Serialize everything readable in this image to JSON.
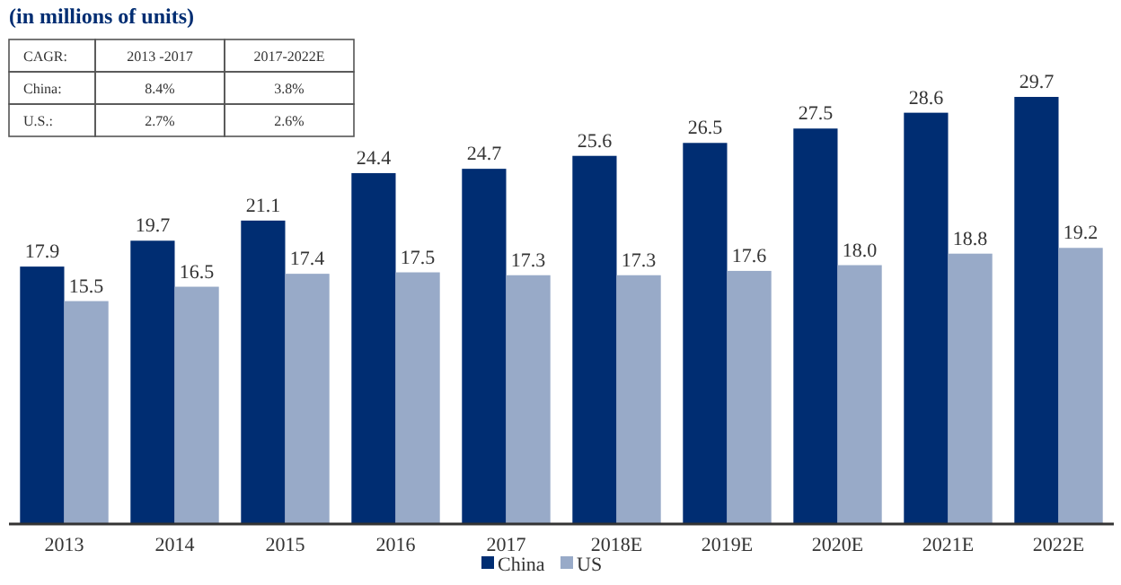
{
  "chart_data": {
    "type": "bar",
    "title": "(in millions of units)",
    "categories": [
      "2013",
      "2014",
      "2015",
      "2016",
      "2017",
      "2018E",
      "2019E",
      "2020E",
      "2021E",
      "2022E"
    ],
    "series": [
      {
        "name": "China",
        "color": "#002d72",
        "values": [
          17.9,
          19.7,
          21.1,
          24.4,
          24.7,
          25.6,
          26.5,
          27.5,
          28.6,
          29.7
        ]
      },
      {
        "name": "US",
        "color": "#98aac8",
        "values": [
          15.5,
          16.5,
          17.4,
          17.5,
          17.3,
          17.3,
          17.6,
          18.0,
          18.8,
          19.2
        ],
        "value_labels": [
          "15.5",
          "16.5",
          "17.4",
          "17.5",
          "17.3",
          "17.3",
          "17.6",
          "18.0",
          "18.8",
          "19.2"
        ]
      }
    ],
    "data_labels": true,
    "legend": "bottom",
    "grid": false,
    "annotations": [
      "CAGR:",
      "2013 -2017",
      "2017-2022E",
      "China:",
      "8.4%",
      "3.8%",
      "U.S.:",
      "2.7%",
      "2.6%"
    ]
  }
}
